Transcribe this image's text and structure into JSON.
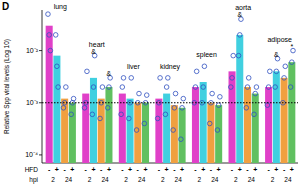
{
  "chart_data": {
    "type": "bar",
    "panel_label": "D",
    "y_label": "Relative Spp viral levels (Log 10)",
    "categories": [
      "lung",
      "heart",
      "liver",
      "kidney",
      "spleen",
      "aorta",
      "adipose"
    ],
    "x_label_rows": [
      {
        "label": "HFD",
        "values": [
          "-",
          "+",
          "-",
          "+"
        ]
      },
      {
        "label": "hpi",
        "values": [
          "2",
          "24"
        ]
      }
    ],
    "log": "y",
    "ylim": [
      7e-05,
      0.06
    ],
    "yticks": [
      {
        "value": 0.0001,
        "label": "10⁻⁴"
      },
      {
        "value": 0.001,
        "label": "10⁻³"
      },
      {
        "value": 0.01,
        "label": "10⁻²"
      }
    ],
    "reference_line": 0.001,
    "series": [
      {
        "color": "#e040c8",
        "values": [
          0.03,
          0.0015,
          0.0015,
          0.0012,
          0.002,
          0.004,
          0.002
        ],
        "points": [
          [
            0.05,
            0.02,
            0.01
          ],
          [
            0.0008,
            0.001,
            0.004
          ],
          [
            0.0006,
            0.002,
            0.003
          ],
          [
            0.0005,
            0.001,
            0.003
          ],
          [
            0.001,
            0.002,
            0.004
          ],
          [
            0.002,
            0.003,
            0.008
          ],
          [
            0.0009,
            0.002,
            0.004
          ]
        ],
        "annotations": [
          null,
          null,
          null,
          null,
          null,
          null,
          null
        ]
      },
      {
        "color": "#40d0e0",
        "values": [
          0.008,
          0.003,
          0.0012,
          0.0015,
          0.0025,
          0.02,
          0.004
        ],
        "points": [
          [
            0.02,
            0.005,
            0.002
          ],
          [
            0.0006,
            0.002,
            0.008
          ],
          [
            0.0005,
            0.001,
            0.003
          ],
          [
            0.0006,
            0.002,
            0.003
          ],
          [
            0.001,
            0.002,
            0.005
          ],
          [
            0.008,
            0.02,
            0.04
          ],
          [
            0.002,
            0.004,
            0.007
          ]
        ],
        "annotations": [
          null,
          "&",
          null,
          null,
          null,
          "&",
          "&"
        ]
      },
      {
        "color": "#f0a040",
        "values": [
          0.0012,
          0.0012,
          0.001,
          0.0009,
          0.001,
          0.002,
          0.003
        ],
        "points": [
          [
            0.0008,
            0.001,
            0.002
          ],
          [
            0.0005,
            0.001,
            0.002
          ],
          [
            0.0003,
            0.001,
            0.0015
          ],
          [
            0.0003,
            0.0008,
            0.0015
          ],
          [
            0.0004,
            0.001,
            0.0015
          ],
          [
            0.0008,
            0.002,
            0.003
          ],
          [
            0.001,
            0.003,
            0.005
          ]
        ],
        "annotations": [
          null,
          null,
          null,
          null,
          null,
          null,
          null
        ]
      },
      {
        "color": "#60c060",
        "values": [
          0.001,
          0.002,
          0.001,
          0.0008,
          0.0009,
          0.0015,
          0.006
        ],
        "points": [
          [
            0.0006,
            0.001,
            0.0012
          ],
          [
            0.0008,
            0.002,
            0.003
          ],
          [
            0.0004,
            0.001,
            0.0014
          ],
          [
            0.0002,
            0.0008,
            0.0012
          ],
          [
            0.0003,
            0.0009,
            0.0013
          ],
          [
            0.0006,
            0.0015,
            0.002
          ],
          [
            0.002,
            0.006,
            0.01
          ]
        ],
        "annotations": [
          null,
          "&",
          null,
          null,
          null,
          null,
          "*"
        ]
      }
    ]
  }
}
